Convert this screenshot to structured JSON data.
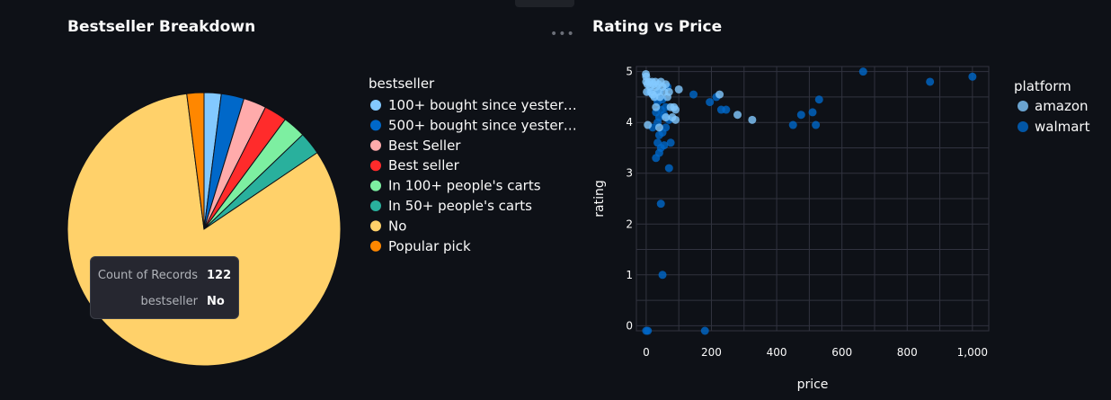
{
  "charts": {
    "pie_title": "Bestseller Breakdown",
    "scatter_title": "Rating vs Price"
  },
  "tooltip": {
    "label_count": "Count of Records",
    "value_count": "122",
    "label_field": "bestseller",
    "value_field": "No"
  },
  "colors": {
    "background": "#0e1117",
    "grid": "#31333f",
    "amazon": "#83c9ff",
    "walmart": "#0068c9"
  },
  "chart_data": [
    {
      "type": "pie",
      "title": "Bestseller Breakdown",
      "legend_title": "bestseller",
      "legend_position": "right",
      "slices": [
        {
          "label": "100+ bought since yester…",
          "value": 3,
          "color": "#83c9ff"
        },
        {
          "label": "500+ bought since yester…",
          "value": 4,
          "color": "#0068c9"
        },
        {
          "label": "Best Seller",
          "value": 4,
          "color": "#ffabab"
        },
        {
          "label": "Best seller",
          "value": 4,
          "color": "#ff2b2b"
        },
        {
          "label": "In 100+ people's carts",
          "value": 4,
          "color": "#7defa1"
        },
        {
          "label": "In 50+ people's carts",
          "value": 4,
          "color": "#29b09d"
        },
        {
          "label": "No",
          "value": 122,
          "color": "#ffd16a"
        },
        {
          "label": "Popular pick",
          "value": 3,
          "color": "#ff8700"
        }
      ]
    },
    {
      "type": "scatter",
      "title": "Rating vs Price",
      "xlabel": "price",
      "ylabel": "rating",
      "xlim": [
        -30,
        1050
      ],
      "ylim": [
        -0.1,
        5.1
      ],
      "xticks": [
        0,
        200,
        400,
        600,
        800,
        1000
      ],
      "xtick_labels": [
        "0",
        "200",
        "400",
        "600",
        "800",
        "1,000"
      ],
      "yticks": [
        0,
        1,
        2,
        3,
        4,
        5
      ],
      "grid": true,
      "legend_title": "platform",
      "legend_position": "right",
      "series": [
        {
          "name": "amazon",
          "color": "#83c9ff",
          "points": [
            [
              -1,
              4.95
            ],
            [
              0,
              4.9
            ],
            [
              0,
              4.8
            ],
            [
              2,
              4.6
            ],
            [
              4,
              4.75
            ],
            [
              8,
              4.8
            ],
            [
              12,
              4.7
            ],
            [
              15,
              4.6
            ],
            [
              18,
              4.8
            ],
            [
              20,
              4.55
            ],
            [
              22,
              4.75
            ],
            [
              25,
              4.5
            ],
            [
              28,
              4.8
            ],
            [
              30,
              4.7
            ],
            [
              35,
              4.6
            ],
            [
              38,
              4.75
            ],
            [
              42,
              4.5
            ],
            [
              45,
              4.8
            ],
            [
              50,
              4.7
            ],
            [
              55,
              4.6
            ],
            [
              60,
              4.75
            ],
            [
              65,
              4.5
            ],
            [
              70,
              4.6
            ],
            [
              75,
              4.3
            ],
            [
              80,
              4.1
            ],
            [
              90,
              4.05
            ],
            [
              100,
              4.65
            ],
            [
              30,
              4.3
            ],
            [
              60,
              4.1
            ],
            [
              40,
              3.9
            ],
            [
              5,
              3.95
            ],
            [
              85,
              4.3
            ],
            [
              280,
              4.15
            ],
            [
              325,
              4.05
            ],
            [
              225,
              4.55
            ],
            [
              90,
              4.25
            ]
          ]
        },
        {
          "name": "walmart",
          "color": "#0068c9",
          "points": [
            [
              0,
              -0.1
            ],
            [
              5,
              -0.1
            ],
            [
              180,
              -0.1
            ],
            [
              50,
              1.0
            ],
            [
              45,
              2.4
            ],
            [
              70,
              3.1
            ],
            [
              30,
              3.3
            ],
            [
              40,
              3.4
            ],
            [
              45,
              3.5
            ],
            [
              55,
              3.55
            ],
            [
              35,
              3.6
            ],
            [
              75,
              3.6
            ],
            [
              40,
              3.75
            ],
            [
              50,
              3.8
            ],
            [
              20,
              3.9
            ],
            [
              60,
              3.9
            ],
            [
              35,
              4.0
            ],
            [
              70,
              4.05
            ],
            [
              40,
              4.1
            ],
            [
              55,
              4.15
            ],
            [
              30,
              4.2
            ],
            [
              45,
              4.25
            ],
            [
              60,
              4.3
            ],
            [
              35,
              4.4
            ],
            [
              50,
              4.45
            ],
            [
              20,
              4.55
            ],
            [
              40,
              4.6
            ],
            [
              65,
              4.7
            ],
            [
              10,
              4.6
            ],
            [
              30,
              4.5
            ],
            [
              145,
              4.55
            ],
            [
              195,
              4.4
            ],
            [
              215,
              4.5
            ],
            [
              230,
              4.25
            ],
            [
              245,
              4.25
            ],
            [
              450,
              3.95
            ],
            [
              475,
              4.15
            ],
            [
              510,
              4.2
            ],
            [
              520,
              3.95
            ],
            [
              530,
              4.45
            ],
            [
              665,
              5.0
            ],
            [
              870,
              4.8
            ],
            [
              1000,
              4.9
            ]
          ]
        }
      ]
    }
  ]
}
